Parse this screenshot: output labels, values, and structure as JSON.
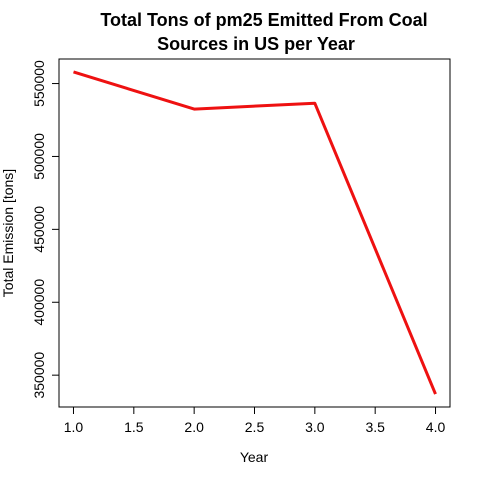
{
  "chart_data": {
    "type": "line",
    "title_lines": [
      "Total Tons of pm25 Emitted From Coal",
      "Sources in US per Year"
    ],
    "xlabel": "Year",
    "ylabel": "Total Emission [tons]",
    "x": [
      1,
      2,
      3,
      4
    ],
    "series": [
      {
        "values": [
          558000,
          532500,
          536500,
          337000
        ],
        "color": "#ee1111"
      }
    ],
    "x_ticks": [
      1.0,
      1.5,
      2.0,
      2.5,
      3.0,
      3.5,
      4.0
    ],
    "x_tick_labels": [
      "1.0",
      "1.5",
      "2.0",
      "2.5",
      "3.0",
      "3.5",
      "4.0"
    ],
    "y_ticks": [
      350000,
      400000,
      450000,
      500000,
      550000
    ],
    "y_tick_labels": [
      "350000",
      "400000",
      "450000",
      "500000",
      "550000"
    ],
    "xlim": [
      0.88,
      4.12
    ],
    "ylim": [
      328163,
      566837
    ],
    "grid": false,
    "legend": "none"
  }
}
